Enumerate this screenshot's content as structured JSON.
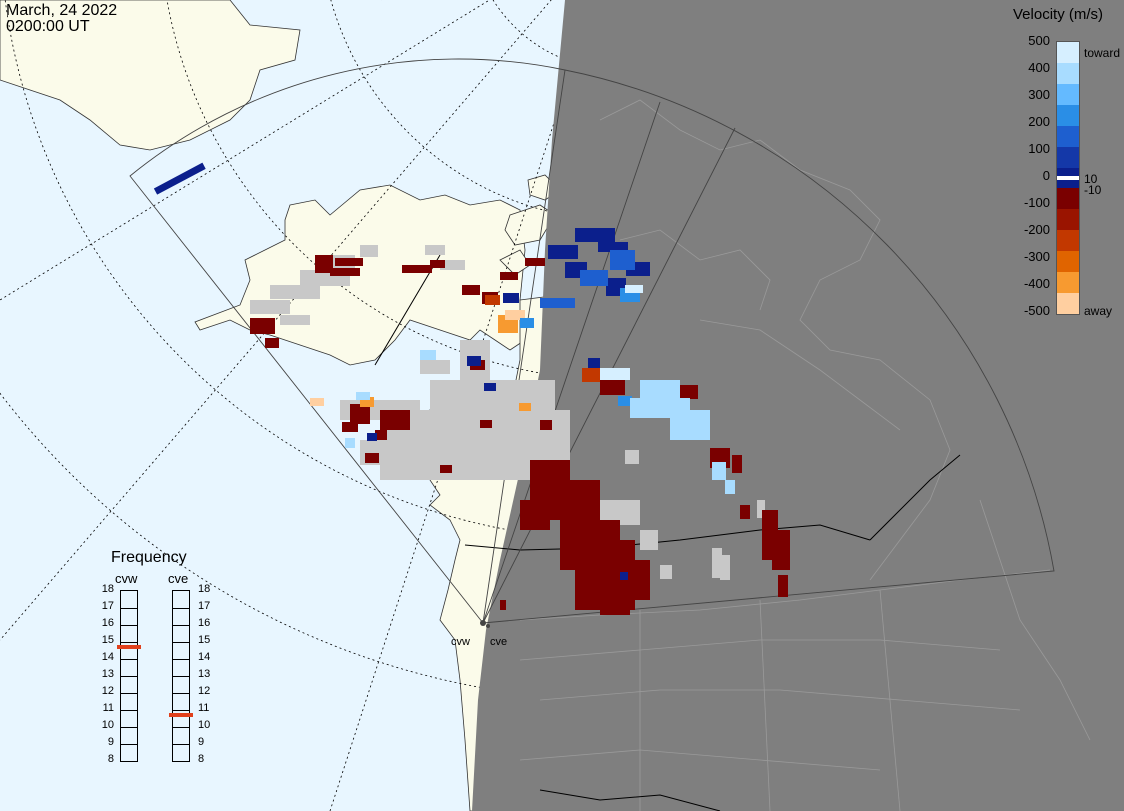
{
  "header": {
    "date": "March, 24 2022",
    "time": "0200:00 UT"
  },
  "velocity_scale": {
    "title": "Velocity (m/s)",
    "ticks": [
      "500",
      "400",
      "300",
      "200",
      "100",
      "0",
      "-100",
      "-200",
      "-300",
      "-400",
      "-500"
    ],
    "mid_labels": [
      "10",
      "-10"
    ],
    "toward_label": "toward",
    "away_label": "away",
    "colors": [
      "#d6efff",
      "#a8dcff",
      "#64baff",
      "#2a8ee6",
      "#1e5fcf",
      "#1438a8",
      "#0b1f8c",
      "#7a0000",
      "#9a1400",
      "#c23800",
      "#e06400",
      "#f79a30",
      "#ffcfa0"
    ]
  },
  "frequency_panel": {
    "title": "Frequency",
    "radars": [
      "cvw",
      "cve"
    ],
    "scale_labels": [
      "18",
      "17",
      "16",
      "15",
      "14",
      "13",
      "12",
      "11",
      "10",
      "9",
      "8"
    ],
    "cvw_frequency_mhz": 14.7,
    "cve_frequency_mhz": 10.7,
    "indicator_color": "#e0401c"
  },
  "map": {
    "sites": [
      "cvw",
      "cve"
    ],
    "night_color": "#7f7f7f",
    "day_ocean_color": "#e8f6ff",
    "land_color": "#fbfbea",
    "ground_scatter_color": "#c8c8c8"
  }
}
